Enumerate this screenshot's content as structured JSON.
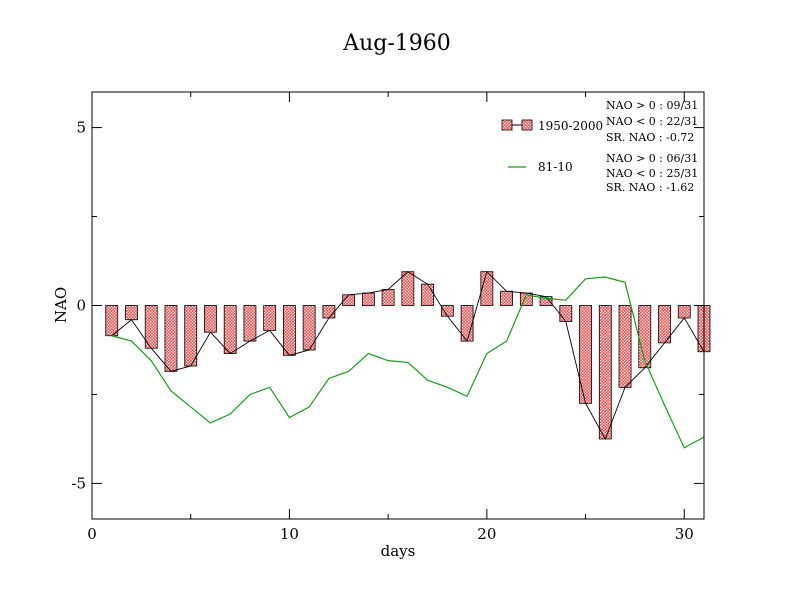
{
  "colors": {
    "bar_fill": "#e85a5a",
    "bar_hatch": "#ffffff",
    "bar_stroke": "#000000",
    "clim_line": "#1a9a1a",
    "obs_line": "#000000",
    "axis": "#000000"
  },
  "chart_data": {
    "type": "bar",
    "title": "Aug-1960",
    "xlabel": "days",
    "ylabel": "NAO",
    "xlim": [
      0,
      31
    ],
    "ylim": [
      -6,
      6
    ],
    "xticks": [
      0,
      10,
      20,
      30
    ],
    "yticks": [
      -5,
      0,
      5
    ],
    "xtick_labels": [
      "0",
      "10",
      "20",
      "30"
    ],
    "ytick_labels": [
      "-5",
      "0",
      "5"
    ],
    "days": [
      1,
      2,
      3,
      4,
      5,
      6,
      7,
      8,
      9,
      10,
      11,
      12,
      13,
      14,
      15,
      16,
      17,
      18,
      19,
      20,
      21,
      22,
      23,
      24,
      25,
      26,
      27,
      28,
      29,
      30,
      31
    ],
    "series": [
      {
        "name": "1950-2000",
        "type": "bar",
        "values": [
          -0.85,
          -0.4,
          -1.2,
          -1.85,
          -1.7,
          -0.75,
          -1.35,
          -1.0,
          -0.7,
          -1.4,
          -1.25,
          -0.35,
          0.3,
          0.35,
          0.45,
          0.95,
          0.6,
          -0.3,
          -1.0,
          0.95,
          0.4,
          0.35,
          0.25,
          -0.45,
          -2.75,
          -3.75,
          -2.3,
          -1.75,
          -1.05,
          -0.35,
          -1.3
        ]
      },
      {
        "name": "81-10",
        "type": "line",
        "values": [
          -0.85,
          -1.0,
          -1.55,
          -2.4,
          -2.85,
          -3.3,
          -3.05,
          -2.5,
          -2.3,
          -3.15,
          -2.85,
          -2.05,
          -1.85,
          -1.35,
          -1.55,
          -1.6,
          -2.1,
          -2.3,
          -2.55,
          -1.35,
          -1.0,
          0.3,
          0.2,
          0.15,
          0.75,
          0.8,
          0.65,
          -1.55,
          -2.8,
          -4.0,
          -3.7
        ]
      }
    ],
    "legend": {
      "position": "top-right",
      "entries": [
        {
          "label": "1950-2000",
          "stats": [
            "NAO > 0 : 09/31",
            "NAO < 0 : 22/31",
            "SR. NAO : -0.72"
          ]
        },
        {
          "label": "81-10",
          "stats": [
            "NAO > 0 : 06/31",
            "NAO < 0 : 25/31",
            "SR. NAO : -1.62"
          ]
        }
      ]
    },
    "grid": false
  }
}
